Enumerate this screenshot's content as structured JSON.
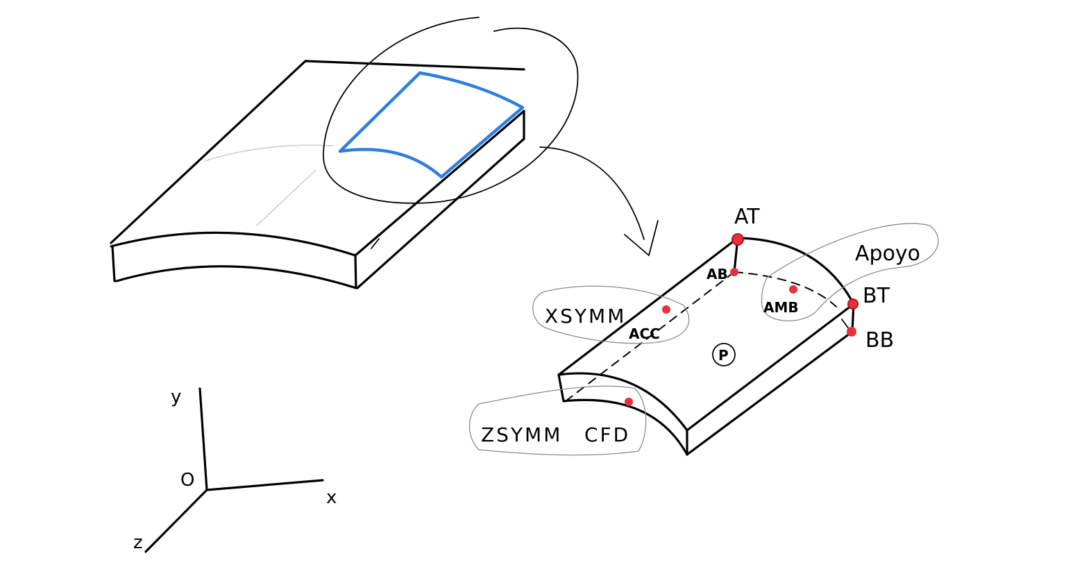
{
  "labels": {
    "at": "AT",
    "ab": "AB",
    "bt": "BT",
    "bb": "BB",
    "apoyo": "Apoyo",
    "amb": "AMB",
    "xsymm": "XSYMM",
    "acc": "ACC",
    "p": "P",
    "zsymm": "ZSYMM",
    "cfd": "CFD"
  },
  "axes": {
    "y": "y",
    "x": "x",
    "z": "z",
    "origin": "O"
  },
  "colors": {
    "ink": "#000000",
    "selection": "#2f7fdd",
    "points": "#e8303a",
    "outline": "#8a8a8a"
  }
}
